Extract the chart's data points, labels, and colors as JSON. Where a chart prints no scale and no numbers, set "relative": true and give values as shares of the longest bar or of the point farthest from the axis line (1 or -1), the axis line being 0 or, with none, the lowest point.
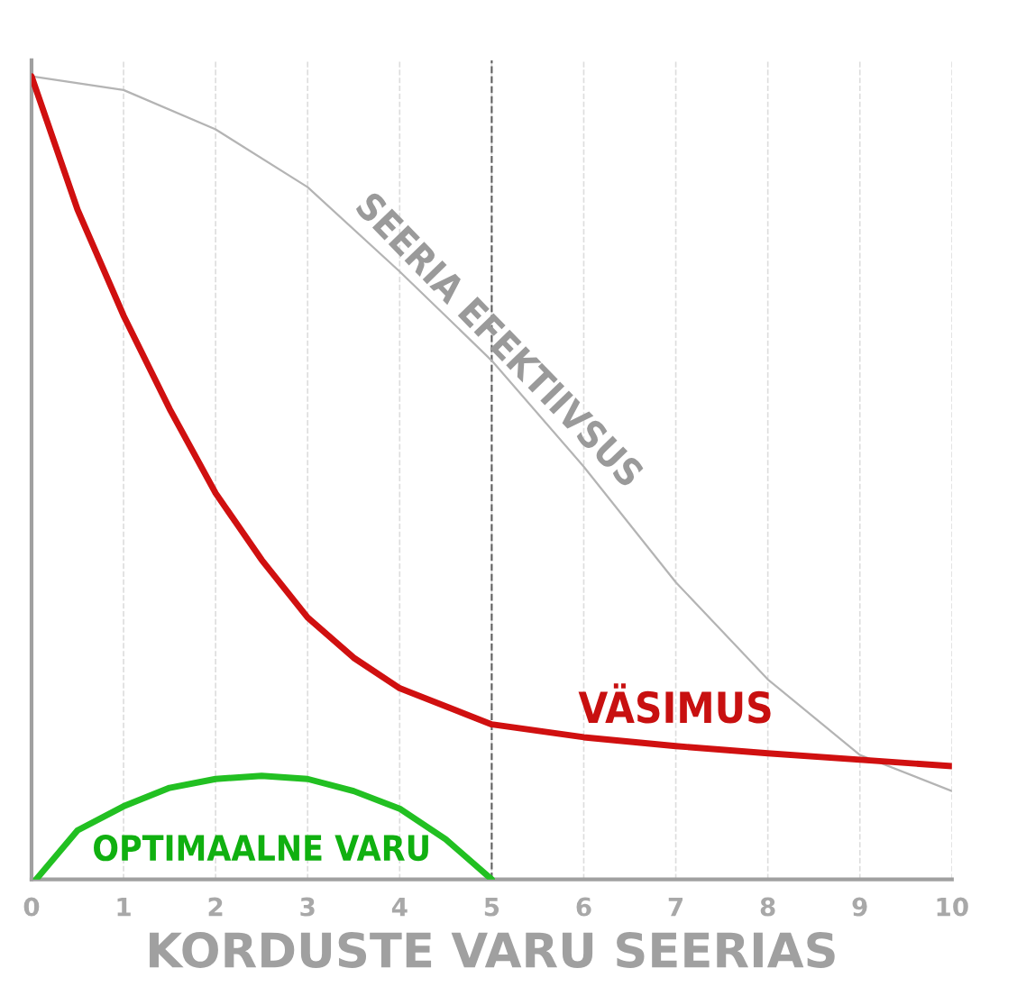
{
  "chart_data": {
    "type": "line",
    "relative": true,
    "xlabel": "KORDUSTE VARU SEERIAS",
    "xlim": [
      0,
      10
    ],
    "xticks": [
      0,
      1,
      2,
      3,
      4,
      5,
      6,
      7,
      8,
      9,
      10
    ],
    "grid": "x",
    "line_style": "solid",
    "marker": "none",
    "ref_lines": [
      {
        "axis": "x",
        "value": 5,
        "color": "#606060",
        "line_style": "dashed"
      }
    ],
    "series": [
      {
        "name": "SEERIA EFEKTIIVSUS",
        "color": "#b4b4b4",
        "x": [
          0,
          1,
          2,
          3,
          4,
          5,
          6,
          7,
          8,
          9,
          10
        ],
        "values": [
          1.0,
          0.983,
          0.934,
          0.862,
          0.757,
          0.646,
          0.514,
          0.37,
          0.249,
          0.155,
          0.11
        ]
      },
      {
        "name": "VÄSIMUS",
        "color": "#d01010",
        "x": [
          0,
          0.5,
          1,
          1.5,
          2,
          2.5,
          3,
          3.5,
          4,
          5,
          6,
          7,
          8,
          9,
          10
        ],
        "values": [
          1.0,
          0.834,
          0.702,
          0.586,
          0.481,
          0.398,
          0.326,
          0.276,
          0.238,
          0.193,
          0.177,
          0.166,
          0.157,
          0.149,
          0.141
        ]
      },
      {
        "name": "OPTIMAALNE VARU",
        "color": "#22c022",
        "x": [
          0.05,
          0.5,
          1,
          1.5,
          2,
          2.5,
          3,
          3.5,
          4,
          4.5,
          5
        ],
        "values": [
          0,
          0.061,
          0.091,
          0.114,
          0.125,
          0.129,
          0.125,
          0.11,
          0.088,
          0.05,
          0
        ]
      }
    ]
  }
}
